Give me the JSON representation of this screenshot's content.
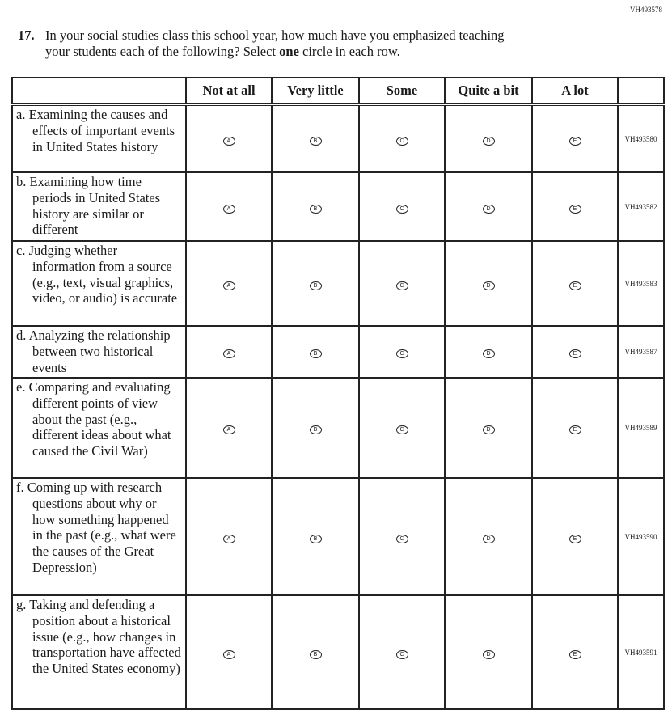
{
  "page_code": "VH493578",
  "question": {
    "number": "17.",
    "line1": "In your social studies class this school year, how much have you emphasized teaching",
    "line2_pre": "your students each of the following? Select ",
    "line2_bold": "one",
    "line2_post": " circle in each row."
  },
  "columns": [
    "Not at all",
    "Very little",
    "Some",
    "Quite a bit",
    "A lot"
  ],
  "options": [
    "A",
    "B",
    "C",
    "D",
    "E"
  ],
  "rows": [
    {
      "text": "a. Examining the causes and effects of important events in United States history",
      "code": "VH493580",
      "h": 84
    },
    {
      "text": "b. Examining how time periods in United States history are similar or different",
      "code": "VH493582",
      "h": 85
    },
    {
      "text": "c. Judging whether information from a source (e.g., text, visual graphics, video, or audio) is accurate",
      "code": "VH493583",
      "h": 105
    },
    {
      "text": "d. Analyzing the relationship between two historical events",
      "code": "VH493587",
      "h": 64
    },
    {
      "text": "e. Comparing and evaluating different points of view about the past (e.g., different ideas about what caused the Civil War)",
      "code": "VH493589",
      "h": 124
    },
    {
      "text": "f. Coming up with research questions about why or how something happened in the past (e.g., what were the causes of the Great Depression)",
      "code": "VH493590",
      "h": 145
    },
    {
      "text": "g. Taking and defending a position about a historical issue (e.g., how changes in transportation have affected the United States economy)",
      "code": "VH493591",
      "h": 141
    }
  ]
}
